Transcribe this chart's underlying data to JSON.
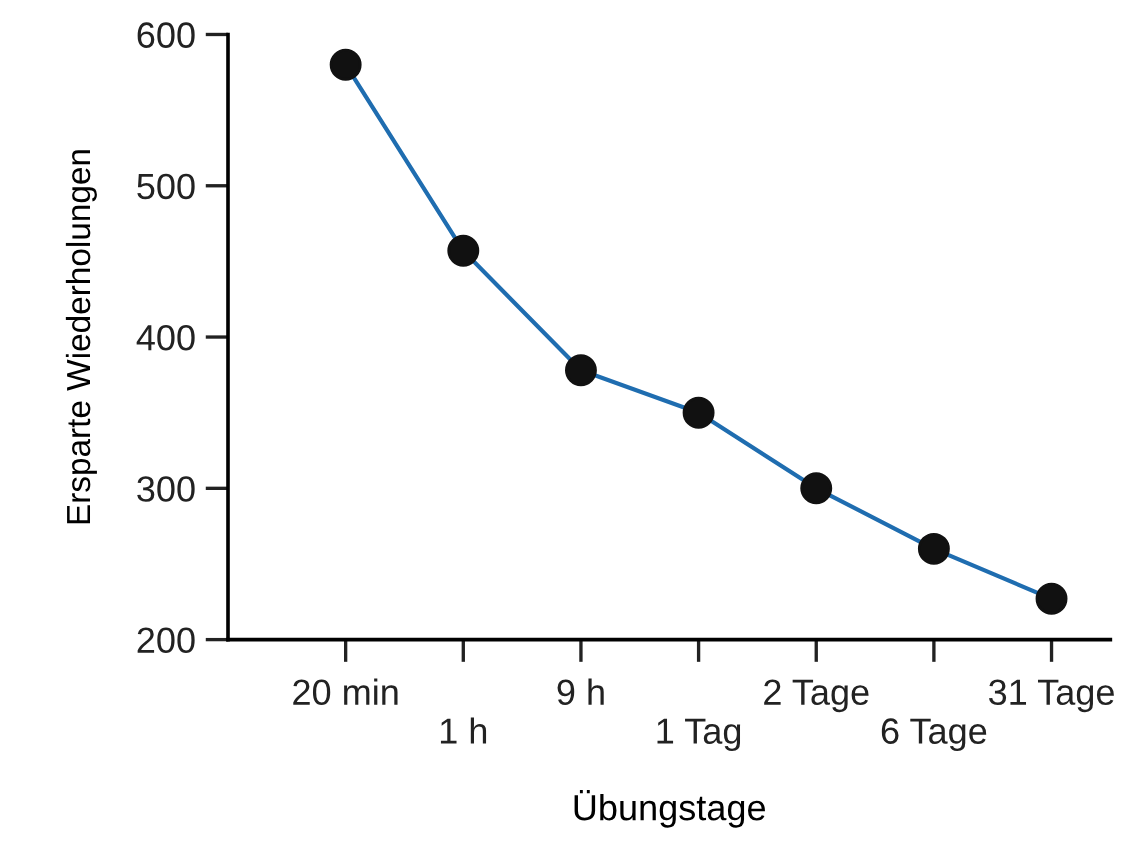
{
  "chart_data": {
    "type": "line",
    "xlabel": "Übungstage",
    "ylabel": "Ersparte Wiederholungen",
    "categories": [
      "20 min",
      "1 h",
      "9 h",
      "1 Tag",
      "2 Tage",
      "6 Tage",
      "31 Tage"
    ],
    "series": [
      {
        "color": "#1f6db0",
        "values": [
          580,
          457,
          378,
          350,
          300,
          260,
          227
        ]
      }
    ],
    "ylim": [
      200,
      600
    ],
    "yticks": [
      200,
      300,
      400,
      500,
      600
    ],
    "grid": false,
    "legend": false,
    "marker": "circle",
    "line_style": "solid"
  }
}
